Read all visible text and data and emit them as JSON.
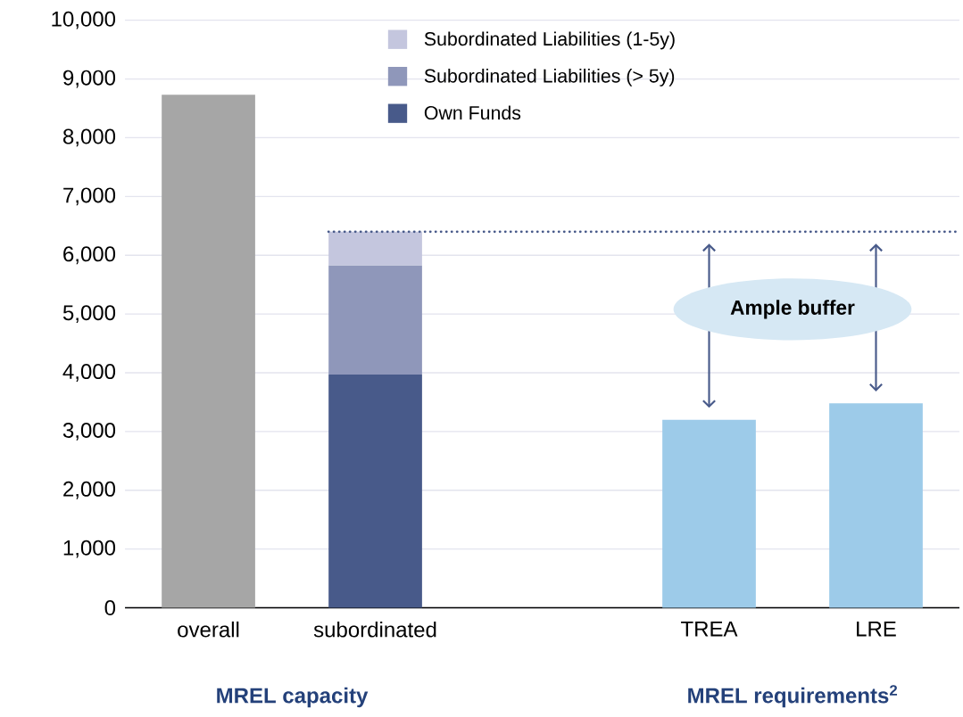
{
  "chart_data": {
    "type": "bar",
    "stacked": true,
    "categories": [
      "overall",
      "subordinated",
      null,
      "TREA",
      "LRE"
    ],
    "series": [
      {
        "color": "#a6a6a6",
        "values": [
          8730,
          null,
          null,
          null,
          null
        ]
      },
      {
        "name": "Own Funds",
        "color": "#485a8a",
        "values": [
          null,
          3970,
          null,
          null,
          null
        ]
      },
      {
        "name": "Subordinated Liabilities (> 5y)",
        "color": "#8f97ba",
        "values": [
          null,
          1860,
          null,
          null,
          null
        ]
      },
      {
        "name": "Subordinated Liabilities (1-5y)",
        "color": "#c4c6de",
        "values": [
          null,
          570,
          null,
          null,
          null
        ]
      },
      {
        "color": "#9dcbe9",
        "values": [
          null,
          null,
          null,
          3200,
          3480
        ]
      }
    ],
    "ylim": [
      0,
      10000
    ],
    "yticks": [
      0,
      {
        "value": 1000,
        "label": "1,000"
      },
      {
        "value": 2000,
        "label": "2,000"
      },
      {
        "value": 3000,
        "label": "3,000"
      },
      {
        "value": 4000,
        "label": "4,000"
      },
      {
        "value": 5000,
        "label": "5,000"
      },
      {
        "value": 6000,
        "label": "6,000"
      },
      {
        "value": 7000,
        "label": "7,000"
      },
      {
        "value": 8000,
        "label": "8,000"
      },
      {
        "value": 9000,
        "label": "9,000"
      },
      {
        "value": 10000,
        "label": "10,000"
      }
    ],
    "grid": "y",
    "legend": "top",
    "ref_lines": [
      {
        "axis": "y",
        "value": 6400,
        "line_style": "dotted",
        "color": "#485a8a"
      }
    ],
    "annotations": [
      "MREL capacity",
      "MREL requirements$^{2}$",
      "Ample buffer"
    ]
  }
}
